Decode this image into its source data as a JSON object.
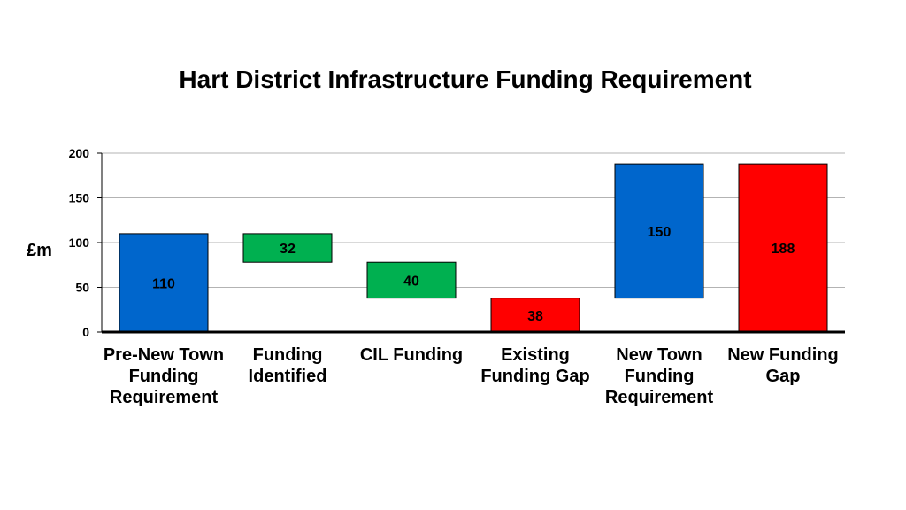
{
  "chart_data": {
    "type": "bar",
    "title": "Hart District Infrastructure Funding Requirement",
    "ylabel": "£m",
    "xlabel": "",
    "ylim": [
      0,
      200
    ],
    "yticks": [
      0,
      50,
      100,
      150,
      200
    ],
    "grid": true,
    "legend": "none",
    "bars": [
      {
        "label": "Pre-New Town Funding Requirement",
        "base": 0,
        "top": 110,
        "value": "110",
        "color": "#0066cc"
      },
      {
        "label": "Funding Identified",
        "base": 78,
        "top": 110,
        "value": "32",
        "color": "#00b050"
      },
      {
        "label": "CIL Funding",
        "base": 38,
        "top": 78,
        "value": "40",
        "color": "#00b050"
      },
      {
        "label": "Existing Funding Gap",
        "base": 0,
        "top": 38,
        "value": "38",
        "color": "#ff0000"
      },
      {
        "label": "New Town Funding Requirement",
        "base": 38,
        "top": 188,
        "value": "150",
        "color": "#0066cc"
      },
      {
        "label": "New Funding Gap",
        "base": 0,
        "top": 188,
        "value": "188",
        "color": "#ff0000"
      }
    ]
  }
}
